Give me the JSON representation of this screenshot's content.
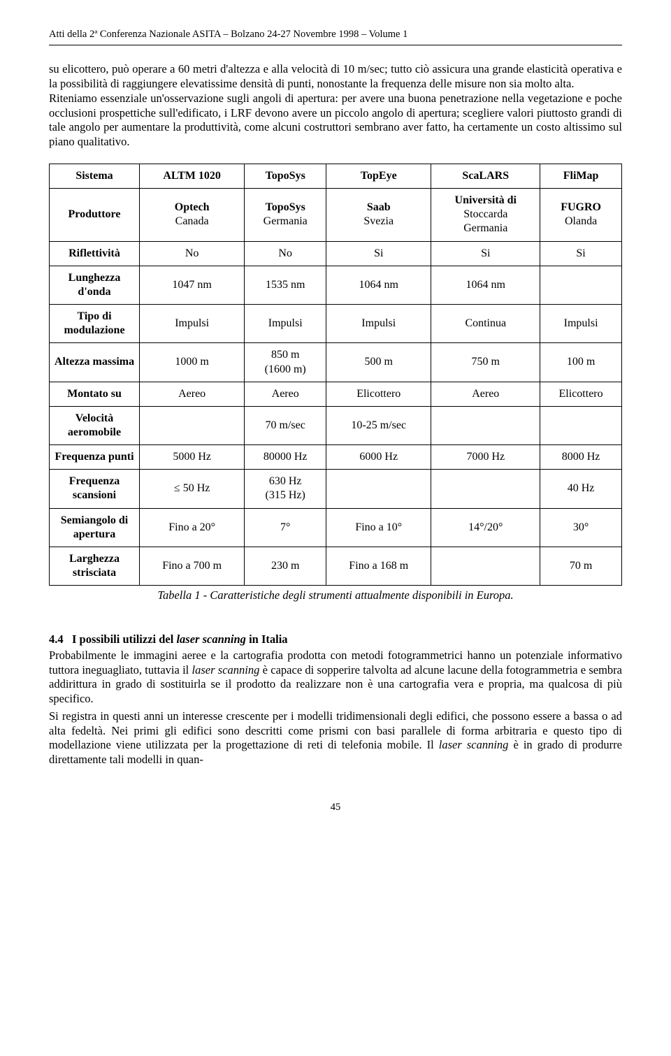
{
  "header": {
    "line": "Atti della 2ª Conferenza Nazionale ASITA – Bolzano 24-27 Novembre 1998 – Volume 1"
  },
  "para1": "su elicottero, può operare a 60 metri d'altezza e alla velocità di 10 m/sec; tutto ciò assicura una grande elasticità operativa e la possibilità di raggiungere elevatissime densità di punti, nonostante la frequenza delle misure non sia molto alta.",
  "para2": "Riteniamo essenziale un'osservazione sugli angoli di apertura: per avere una buona penetrazione nella vegetazione e poche occlusioni prospettiche sull'edificato, i LRF devono avere un piccolo angolo di apertura; scegliere valori piuttosto grandi di tale angolo per aumentare la produttività, come alcuni costruttori sembrano aver fatto, ha certamente un costo altissimo sul piano qualitativo.",
  "table": {
    "columns": [
      "Sistema",
      "ALTM 1020",
      "TopoSys",
      "TopEye",
      "ScaLARS",
      "FliMap"
    ],
    "rows": [
      {
        "head": "Produttore",
        "cells": [
          "Optech\nCanada",
          "TopoSys\nGermania",
          "Saab\nSvezia",
          "Università di\nStoccarda\nGermania",
          "FUGRO\nOlanda"
        ],
        "bold_first_line": true
      },
      {
        "head": "Riflettività",
        "cells": [
          "No",
          "No",
          "Si",
          "Si",
          "Si"
        ]
      },
      {
        "head": "Lunghezza d'onda",
        "cells": [
          "1047 nm",
          "1535 nm",
          "1064 nm",
          "1064 nm",
          ""
        ]
      },
      {
        "head": "Tipo di modulazione",
        "cells": [
          "Impulsi",
          "Impulsi",
          "Impulsi",
          "Continua",
          "Impulsi"
        ]
      },
      {
        "head": "Altezza massima",
        "cells": [
          "1000 m",
          "850 m\n(1600 m)",
          "500 m",
          "750 m",
          "100 m"
        ]
      },
      {
        "head": "Montato su",
        "cells": [
          "Aereo",
          "Aereo",
          "Elicottero",
          "Aereo",
          "Elicottero"
        ]
      },
      {
        "head": "Velocità aeromobile",
        "cells": [
          "",
          "70 m/sec",
          "10-25 m/sec",
          "",
          ""
        ]
      },
      {
        "head": "Frequenza punti",
        "cells": [
          "5000 Hz",
          "80000 Hz",
          "6000 Hz",
          "7000 Hz",
          "8000 Hz"
        ]
      },
      {
        "head": "Frequenza scansioni",
        "cells": [
          "≤ 50 Hz",
          "630 Hz\n(315 Hz)",
          "",
          "",
          "40 Hz"
        ]
      },
      {
        "head": "Semiangolo di apertura",
        "cells": [
          "Fino a 20°",
          "7°",
          "Fino a 10°",
          "14°/20°",
          "30°"
        ]
      },
      {
        "head": "Larghezza strisciata",
        "cells": [
          "Fino a 700 m",
          "230 m",
          "Fino a 168 m",
          "",
          "70 m"
        ]
      }
    ],
    "caption": "Tabella 1 - Caratteristiche degli strumenti attualmente disponibili in Europa."
  },
  "section": {
    "num": "4.4",
    "title_plain": "I possibili utilizzi del ",
    "title_italic": "laser scanning",
    "title_tail": " in Italia"
  },
  "sec_para1_a": "Probabilmente le immagini aeree e la cartografia prodotta con metodi fotogrammetrici hanno un potenziale informativo tuttora ineguagliato, tuttavia il ",
  "sec_para1_it": "laser scanning",
  "sec_para1_b": " è capace di sopperire talvolta ad alcune lacune della fotogrammetria e sembra addirittura in grado di sostituirla se il prodotto da realizzare non è una cartografia vera e propria, ma qualcosa di più specifico.",
  "sec_para2_a": "Si registra in questi anni un interesse crescente per i modelli tridimensionali degli edifici, che possono essere a bassa o ad alta fedeltà. Nei primi gli edifici sono descritti come prismi con basi parallele di forma arbitraria e questo tipo di modellazione viene utilizzata per la progettazione di reti di telefonia mobile. Il ",
  "sec_para2_it": "laser scanning",
  "sec_para2_b": " è in grado di produrre direttamente tali modelli in quan-",
  "page_number": "45"
}
